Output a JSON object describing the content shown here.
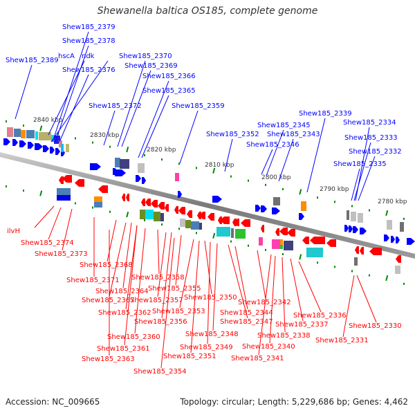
{
  "title": "Shewanella baltica OS185, complete genome",
  "footer": {
    "accession": "Accession: NC_009665",
    "summary": "Topology: circular; Length: 5,229,686 bp; Genes: 4,462"
  },
  "colors": {
    "forward_strand": "#0000ff",
    "reverse_strand": "#ff0000",
    "backbone": "#888888",
    "tick": "#008800"
  },
  "scale_labels": [
    "2840 kbp",
    "2830 kbp",
    "2820 kbp",
    "2810 kbp",
    "2800 kbp",
    "2790 kbp",
    "2780 kbp"
  ],
  "forward_genes": [
    {
      "name": "Shew185_2389"
    },
    {
      "name": "hscA"
    },
    {
      "name": "ndk"
    },
    {
      "name": "Shew185_2379"
    },
    {
      "name": "Shew185_2378"
    },
    {
      "name": "Shew185_2376"
    },
    {
      "name": "Shew185_2372"
    },
    {
      "name": "Shew185_2370"
    },
    {
      "name": "Shew185_2369"
    },
    {
      "name": "Shew185_2366"
    },
    {
      "name": "Shew185_2365"
    },
    {
      "name": "Shew185_2359"
    },
    {
      "name": "Shew185_2352"
    },
    {
      "name": "Shew185_2346"
    },
    {
      "name": "Shew185_2345"
    },
    {
      "name": "Shew185_2343"
    },
    {
      "name": "Shew185_2339"
    },
    {
      "name": "Shew185_2335"
    },
    {
      "name": "Shew185_2334"
    },
    {
      "name": "Shew185_2333"
    },
    {
      "name": "Shew185_2332"
    }
  ],
  "reverse_genes": [
    {
      "name": "ilvH"
    },
    {
      "name": "Shew185_2374"
    },
    {
      "name": "Shew185_2373"
    },
    {
      "name": "Shew185_2371"
    },
    {
      "name": "Shew185_2368"
    },
    {
      "name": "Shew185_2367"
    },
    {
      "name": "Shew185_2364"
    },
    {
      "name": "Shew185_2363"
    },
    {
      "name": "Shew185_2362"
    },
    {
      "name": "Shew185_2361"
    },
    {
      "name": "Shew185_2360"
    },
    {
      "name": "Shew185_2358"
    },
    {
      "name": "Shew185_2357"
    },
    {
      "name": "Shew185_2356"
    },
    {
      "name": "Shew185_2355"
    },
    {
      "name": "Shew185_2354"
    },
    {
      "name": "Shew185_2353"
    },
    {
      "name": "Shew185_2351"
    },
    {
      "name": "Shew185_2350"
    },
    {
      "name": "Shew185_2349"
    },
    {
      "name": "Shew185_2348"
    },
    {
      "name": "Shew185_2347"
    },
    {
      "name": "Shew185_2344"
    },
    {
      "name": "Shew185_2342"
    },
    {
      "name": "Shew185_2341"
    },
    {
      "name": "Shew185_2340"
    },
    {
      "name": "Shew185_2338"
    },
    {
      "name": "Shew185_2337"
    },
    {
      "name": "Shew185_2336"
    },
    {
      "name": "Shew185_2331"
    },
    {
      "name": "Shew185_2330"
    }
  ]
}
